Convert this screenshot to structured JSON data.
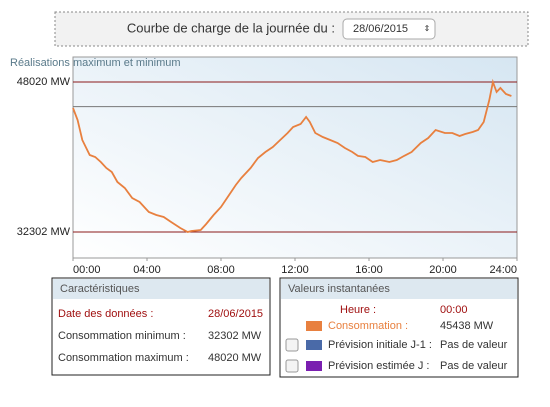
{
  "header": {
    "label": "Courbe de charge de la journée du :",
    "date": "28/06/2015"
  },
  "chart_data": {
    "type": "line",
    "title": "Réalisations maximum et minimum",
    "color": "#e8803f",
    "x": [
      0,
      0.25,
      0.5,
      0.9,
      1.2,
      1.5,
      1.8,
      2.1,
      2.4,
      2.8,
      3.2,
      3.6,
      4.1,
      4.5,
      4.9,
      5.3,
      5.8,
      6.2,
      6.4,
      6.9,
      7.2,
      7.6,
      8.0,
      8.4,
      8.8,
      9.1,
      9.6,
      10.0,
      10.4,
      10.8,
      11.2,
      11.6,
      11.9,
      12.3,
      12.6,
      12.8,
      13.1,
      13.5,
      13.9,
      14.3,
      14.7,
      15.1,
      15.4,
      15.8,
      16.2,
      16.6,
      17.1,
      17.5,
      17.9,
      18.3,
      18.8,
      19.2,
      19.6,
      20.1,
      20.5,
      20.9,
      21.2,
      21.6,
      21.9,
      22.2,
      22.5,
      22.7,
      22.9,
      23.1,
      23.4,
      23.7
    ],
    "values": [
      45300,
      44040,
      41940,
      40370,
      40160,
      39640,
      39010,
      38590,
      37540,
      36910,
      35860,
      35440,
      34400,
      34080,
      33870,
      33350,
      32720,
      32302,
      32400,
      32510,
      33140,
      34080,
      34920,
      36070,
      37230,
      37960,
      39010,
      40060,
      40680,
      41210,
      41940,
      42680,
      43300,
      43620,
      44350,
      43830,
      42680,
      42260,
      41940,
      41630,
      41100,
      40680,
      40270,
      40160,
      39640,
      39850,
      39640,
      39850,
      40270,
      40680,
      41630,
      42150,
      42990,
      42680,
      42680,
      42360,
      42570,
      42780,
      42990,
      43830,
      46130,
      48020,
      46970,
      47390,
      46760,
      46550
    ],
    "xlim": [
      0,
      24
    ],
    "xticks": [
      {
        "value": 0,
        "label": "00:00"
      },
      {
        "value": 4,
        "label": "04:00"
      },
      {
        "value": 8,
        "label": "08:00"
      },
      {
        "value": 12,
        "label": "12:00"
      },
      {
        "value": 16,
        "label": "16:00"
      },
      {
        "value": 20,
        "label": "20:00"
      },
      {
        "value": 24,
        "label": "24:00"
      }
    ],
    "ylim": [
      29575,
      50640
    ],
    "yticks": [
      {
        "value": 48020,
        "label": "48020 MW"
      },
      {
        "value": 32302,
        "label": "32302 MW"
      }
    ],
    "grid": true,
    "grid_color": "#8b1a1a"
  },
  "characteristics": {
    "title": "Caractéristiques",
    "rows": [
      [
        "Date des données :",
        "28/06/2015"
      ],
      [
        "Consommation minimum :",
        "32302 MW"
      ],
      [
        "Consommation maximum :",
        "48020 MW"
      ]
    ]
  },
  "instant": {
    "title": "Valeurs instantanées",
    "time": {
      "label": "Heure :",
      "value": "00:00"
    },
    "consumption": {
      "label": "Consommation :",
      "value": 45438,
      "value_label": "45438 MW",
      "color": "#e8803f"
    },
    "forecasts": [
      {
        "label": "Prévision initiale J-1 :",
        "value": "Pas de valeur",
        "color": "#4a6aa8"
      },
      {
        "label": "Prévision estimée J :",
        "value": "Pas de valeur",
        "color": "#7a1fb0"
      }
    ]
  }
}
